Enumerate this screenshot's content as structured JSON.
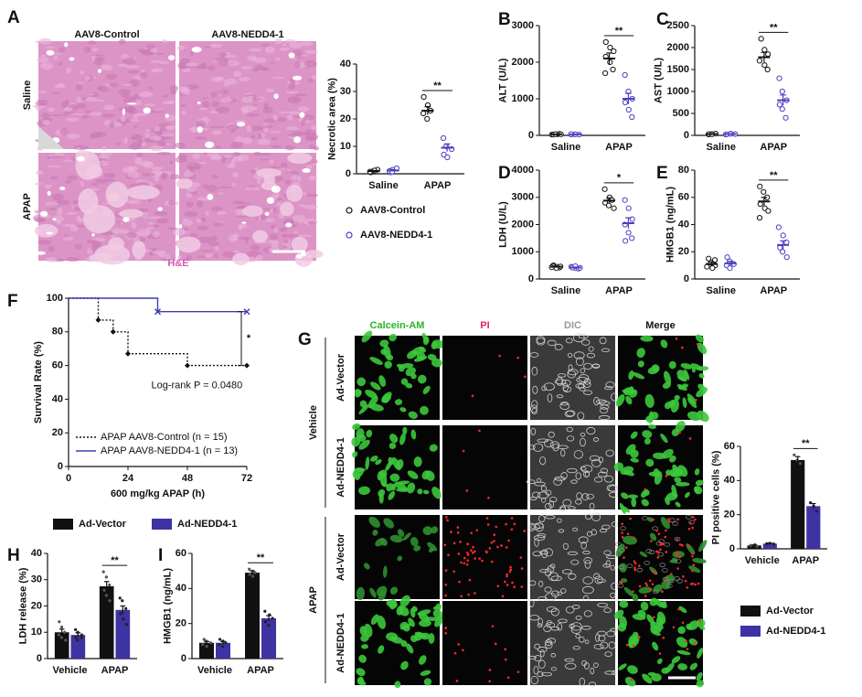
{
  "panel_labels": [
    "A",
    "B",
    "C",
    "D",
    "E",
    "F",
    "G",
    "H",
    "I"
  ],
  "histology": {
    "columns": [
      "AAV8-Control",
      "AAV8-NEDD4-1"
    ],
    "rows": [
      "Saline",
      "APAP"
    ],
    "stain": "H&E"
  },
  "microscopy": {
    "columns": [
      "Calcein-AM",
      "PI",
      "DIC",
      "Merge"
    ],
    "groups": [
      {
        "name": "Vehicle",
        "rows": [
          "Ad-Vector",
          "Ad-NEDD4-1"
        ]
      },
      {
        "name": "APAP",
        "rows": [
          "Ad-Vector",
          "Ad-NEDD4-1"
        ]
      }
    ]
  },
  "chart_data": [
    {
      "type": "dot",
      "ylabel": "Necrotic area (%)",
      "categories": [
        "Saline",
        "APAP"
      ],
      "ylim": [
        0,
        40
      ],
      "yticks": [
        0,
        10,
        20,
        30,
        40
      ],
      "annotations": [
        "**"
      ],
      "series": [
        {
          "name": "AAV8-Control",
          "color": "#111111",
          "values": [
            1,
            23
          ],
          "errors": [
            0.2,
            1.5
          ],
          "points": [
            [
              0.5,
              1,
              1.5,
              0.8,
              1.2
            ],
            [
              28,
              25,
              23,
              22,
              20
            ]
          ]
        },
        {
          "name": "AAV8-NEDD4-1",
          "color": "#4b3fc0",
          "values": [
            1.2,
            9.5
          ],
          "errors": [
            0.3,
            1.4
          ],
          "points": [
            [
              0.5,
              1.5,
              2,
              1,
              0.8
            ],
            [
              13,
              10,
              9,
              7,
              6
            ]
          ]
        }
      ]
    },
    {
      "type": "dot",
      "ylabel": "ALT (U/L)",
      "categories": [
        "Saline",
        "APAP"
      ],
      "ylim": [
        0,
        3000
      ],
      "yticks": [
        0,
        1000,
        2000,
        3000
      ],
      "annotations": [
        "**"
      ],
      "series": [
        {
          "color": "#111111",
          "values": [
            30,
            2100
          ],
          "errors": [
            5,
            150
          ],
          "points": [
            [
              20,
              30,
              40,
              25,
              35,
              30
            ],
            [
              2550,
              2400,
              2300,
              2150,
              2000,
              1800,
              1700
            ]
          ]
        },
        {
          "color": "#4b3fc0",
          "values": [
            28,
            1000
          ],
          "errors": [
            5,
            150
          ],
          "points": [
            [
              25,
              30,
              20,
              35,
              30
            ],
            [
              1650,
              1200,
              1000,
              900,
              700,
              500
            ]
          ]
        }
      ]
    },
    {
      "type": "dot",
      "ylabel": "AST (U/L)",
      "categories": [
        "Saline",
        "APAP"
      ],
      "ylim": [
        0,
        2500
      ],
      "yticks": [
        0,
        500,
        1000,
        1500,
        2000,
        2500
      ],
      "annotations": [
        "**"
      ],
      "series": [
        {
          "color": "#111111",
          "values": [
            30,
            1780
          ],
          "errors": [
            5,
            110
          ],
          "points": [
            [
              20,
              30,
              40,
              30,
              25
            ],
            [
              2200,
              1950,
              1850,
              1700,
              1600,
              1500
            ]
          ]
        },
        {
          "color": "#4b3fc0",
          "values": [
            30,
            800
          ],
          "errors": [
            5,
            120
          ],
          "points": [
            [
              20,
              40,
              30,
              25,
              35
            ],
            [
              1300,
              1000,
              800,
              700,
              600,
              400
            ]
          ]
        }
      ]
    },
    {
      "type": "dot",
      "ylabel": "LDH (U/L)",
      "categories": [
        "Saline",
        "APAP"
      ],
      "ylim": [
        0,
        4000
      ],
      "yticks": [
        0,
        1000,
        2000,
        3000,
        4000
      ],
      "annotations": [
        "*"
      ],
      "series": [
        {
          "color": "#111111",
          "values": [
            450,
            2880
          ],
          "errors": [
            20,
            100
          ],
          "points": [
            [
              500,
              450,
              420,
              480,
              400,
              460,
              430
            ],
            [
              3300,
              3000,
              2900,
              2800,
              2700,
              2600
            ]
          ]
        },
        {
          "color": "#4b3fc0",
          "values": [
            420,
            2050
          ],
          "errors": [
            20,
            200
          ],
          "points": [
            [
              450,
              400,
              380,
              420,
              470,
              410
            ],
            [
              2900,
              2600,
              2200,
              2000,
              1700,
              1500,
              1400
            ]
          ]
        }
      ]
    },
    {
      "type": "dot",
      "ylabel": "HMGB1 (ng/mL)",
      "categories": [
        "Saline",
        "APAP"
      ],
      "ylim": [
        0,
        80
      ],
      "yticks": [
        0,
        20,
        40,
        60,
        80
      ],
      "annotations": [
        "**"
      ],
      "series": [
        {
          "color": "#111111",
          "values": [
            11,
            57
          ],
          "errors": [
            1.5,
            3
          ],
          "points": [
            [
              15,
              12,
              10,
              9,
              8,
              14
            ],
            [
              68,
              64,
              60,
              55,
              52,
              50,
              45
            ]
          ]
        },
        {
          "color": "#4b3fc0",
          "values": [
            11.5,
            25
          ],
          "errors": [
            1.5,
            3
          ],
          "points": [
            [
              16,
              13,
              11,
              10,
              8
            ],
            [
              38,
              32,
              27,
              23,
              20,
              16
            ]
          ]
        }
      ]
    },
    {
      "type": "line",
      "ylabel": "Survival Rate (%)",
      "xlabel": "600 mg/kg APAP (h)",
      "xlim": [
        0,
        72
      ],
      "xticks": [
        0,
        24,
        48,
        72
      ],
      "ylim": [
        0,
        100
      ],
      "yticks": [
        0,
        20,
        40,
        60,
        80,
        100
      ],
      "annotations": [
        "*"
      ],
      "note": "Log-rank P = 0.0480",
      "legend": "lower left",
      "series": [
        {
          "name": "APAP AAV8-Control (n = 15)",
          "color": "#111111",
          "linestyle": "dotted",
          "marker": "diamond",
          "x": [
            0,
            12,
            18,
            24,
            48,
            72
          ],
          "values": [
            100,
            87,
            80,
            67,
            60,
            60
          ]
        },
        {
          "name": "APAP AAV8-NEDD4-1 (n = 13)",
          "color": "#3f3fae",
          "linestyle": "solid",
          "marker": "x",
          "x": [
            0,
            36,
            72
          ],
          "values": [
            100,
            92,
            92
          ]
        }
      ]
    },
    {
      "type": "bar",
      "ylabel": "PI positive cells (%)",
      "categories": [
        "Vehicle",
        "APAP"
      ],
      "ylim": [
        0,
        60
      ],
      "yticks": [
        0,
        20,
        40,
        60
      ],
      "annotations": [
        "**"
      ],
      "series": [
        {
          "name": "Ad-Vector",
          "color": "#111111",
          "values": [
            2,
            52
          ],
          "errors": [
            0.3,
            2
          ],
          "points": [
            [
              2,
              2.5,
              1.5
            ],
            [
              55,
              52,
              50
            ]
          ]
        },
        {
          "name": "Ad-NEDD4-1",
          "color": "#3d33a3",
          "values": [
            3,
            25
          ],
          "errors": [
            0.3,
            1.5
          ],
          "points": [
            [
              3,
              3.2,
              2.8
            ],
            [
              27,
              25,
              22
            ]
          ]
        }
      ]
    },
    {
      "type": "bar",
      "ylabel": "LDH release (%)",
      "categories": [
        "Vehicle",
        "APAP"
      ],
      "ylim": [
        0,
        40
      ],
      "yticks": [
        0,
        10,
        20,
        30,
        40
      ],
      "annotations": [
        "**"
      ],
      "series": [
        {
          "name": "Ad-Vector",
          "color": "#111111",
          "values": [
            10,
            27.5
          ],
          "errors": [
            1.2,
            1.8
          ],
          "points": [
            [
              14,
              12,
              10,
              9,
              8,
              7
            ],
            [
              33,
              31,
              28,
              26,
              24,
              22
            ]
          ]
        },
        {
          "name": "Ad-NEDD4-1",
          "color": "#3d33a3",
          "values": [
            9,
            18.5
          ],
          "errors": [
            0.8,
            1.5
          ],
          "points": [
            [
              11,
              10,
              9,
              8,
              7,
              8
            ],
            [
              23,
              22,
              19,
              17,
              15,
              13
            ]
          ]
        }
      ]
    },
    {
      "type": "bar",
      "ylabel": "HMGB1 (ng/mL)",
      "categories": [
        "Vehicle",
        "APAP"
      ],
      "ylim": [
        0,
        60
      ],
      "yticks": [
        0,
        20,
        40,
        60
      ],
      "annotations": [
        "**"
      ],
      "series": [
        {
          "color": "#111111",
          "values": [
            9,
            49
          ],
          "errors": [
            0.8,
            1
          ],
          "points": [
            [
              11,
              10,
              9,
              8,
              7
            ],
            [
              51,
              50,
              49,
              48,
              47
            ]
          ]
        },
        {
          "color": "#3d33a3",
          "values": [
            9,
            23
          ],
          "errors": [
            0.8,
            1.5
          ],
          "points": [
            [
              11,
              10,
              9,
              8,
              7
            ],
            [
              27,
              25,
              23,
              21,
              19
            ]
          ]
        }
      ]
    }
  ]
}
